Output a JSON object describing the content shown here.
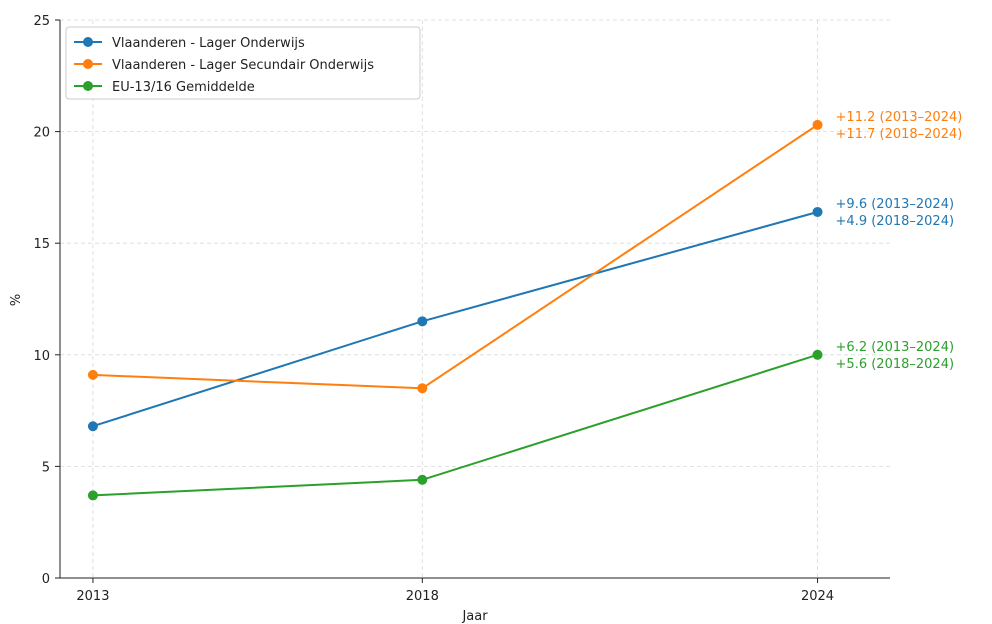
{
  "chart_data": {
    "type": "line",
    "xlabel": "Jaar",
    "ylabel": "%",
    "x": [
      2013,
      2018,
      2024
    ],
    "x_ticks": [
      "2013",
      "2018",
      "2024"
    ],
    "y_ticks": [
      "0",
      "5",
      "10",
      "15",
      "20",
      "25"
    ],
    "ylim": [
      0,
      25
    ],
    "grid": true,
    "legend_position": "top-left",
    "series": [
      {
        "name": "Vlaanderen - Lager Onderwijs",
        "color": "#1f77b4",
        "values": [
          6.8,
          11.5,
          16.4
        ],
        "annotations": [
          "+9.6 (2013–2024)",
          "+4.9 (2018–2024)"
        ]
      },
      {
        "name": "Vlaanderen - Lager Secundair Onderwijs",
        "color": "#ff7f0e",
        "values": [
          9.1,
          8.5,
          20.3
        ],
        "annotations": [
          "+11.2 (2013–2024)",
          "+11.7 (2018–2024)"
        ]
      },
      {
        "name": "EU-13/16 Gemiddelde",
        "color": "#2ca02c",
        "values": [
          3.7,
          4.4,
          10.0
        ],
        "annotations": [
          "+6.2 (2013–2024)",
          "+5.6 (2018–2024)"
        ]
      }
    ]
  }
}
